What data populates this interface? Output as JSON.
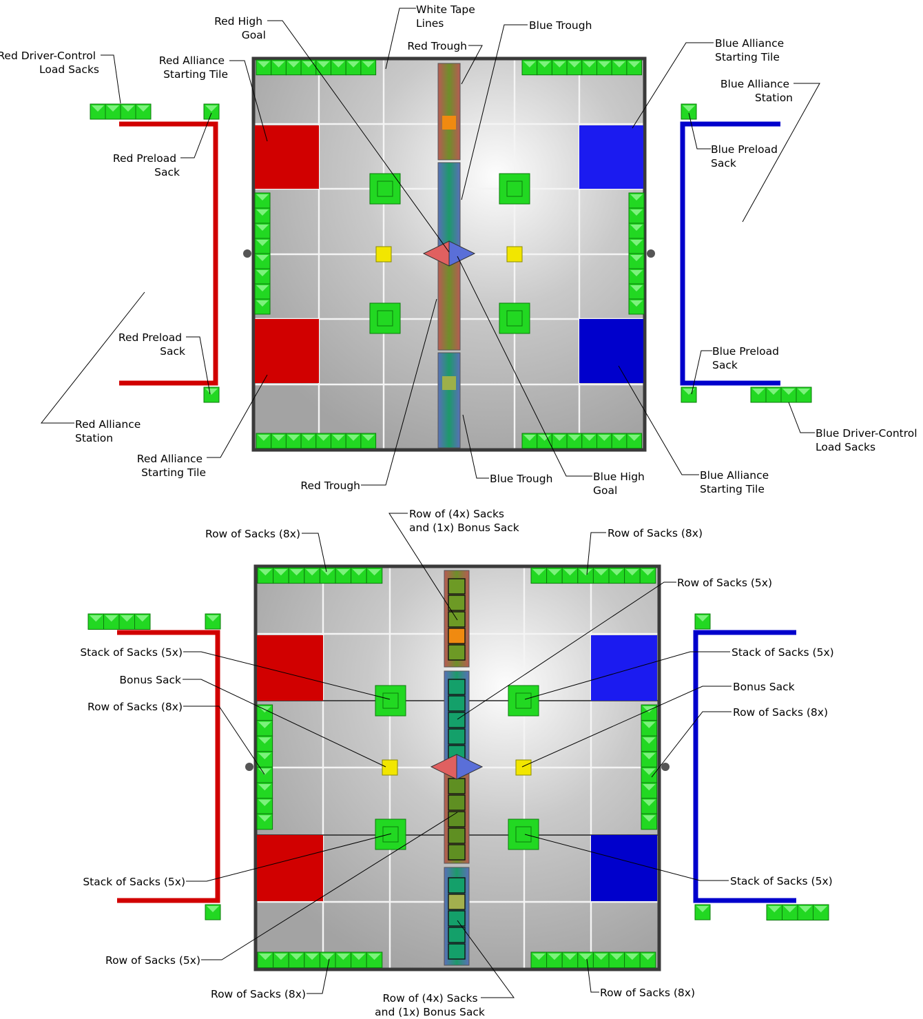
{
  "top_labels": {
    "red_high_goal": [
      "Red High",
      "Goal"
    ],
    "white_tape": [
      "White Tape",
      "Lines"
    ],
    "blue_trough_top": "Blue Trough",
    "red_trough_top": "Red Trough",
    "red_driver_load": [
      "Red Driver-Control",
      "Load Sacks"
    ],
    "red_starting_tile_top": [
      "Red Alliance",
      "Starting Tile"
    ],
    "blue_starting_tile_top": [
      "Blue Alliance",
      "Starting Tile"
    ],
    "blue_station": [
      "Blue Alliance",
      "Station"
    ],
    "red_preload_top": [
      "Red Preload",
      "Sack"
    ],
    "blue_preload_top": [
      "Blue Preload",
      "Sack"
    ],
    "red_preload_bottom": [
      "Red Preload",
      "Sack"
    ],
    "blue_preload_bottom": [
      "Blue Preload",
      "Sack"
    ],
    "red_station": [
      "Red Alliance",
      "Station"
    ],
    "blue_driver_load": [
      "Blue Driver-Control",
      "Load Sacks"
    ],
    "red_starting_tile_bottom": [
      "Red Alliance",
      "Starting Tile"
    ],
    "red_trough_bottom": "Red Trough",
    "blue_trough_bottom": "Blue Trough",
    "blue_high_goal": [
      "Blue High",
      "Goal"
    ],
    "blue_starting_tile_bottom": [
      "Blue Alliance",
      "Starting Tile"
    ]
  },
  "bottom_labels": {
    "row4_top": [
      "Row of (4x) Sacks",
      "and (1x) Bonus Sack"
    ],
    "row8_top_left": "Row of Sacks (8x)",
    "row8_top_right": "Row of Sacks (8x)",
    "row5_right": "Row of Sacks (5x)",
    "stack_left_top": "Stack of Sacks (5x)",
    "bonus_left": "Bonus Sack",
    "row8_left": "Row of Sacks (8x)",
    "stack_right_top": "Stack of Sacks (5x)",
    "bonus_right": "Bonus Sack",
    "row8_right": "Row of Sacks (8x)",
    "stack_left_bottom": "Stack of Sacks (5x)",
    "stack_right_bottom": "Stack of Sacks (5x)",
    "row5_left": "Row of Sacks (5x)",
    "row8_bottom_left": "Row of Sacks (8x)",
    "row8_bottom_right": "Row of Sacks (8x)",
    "row4_bottom": [
      "Row of (4x) Sacks",
      "and (1x) Bonus Sack"
    ]
  },
  "colors": {
    "red": "#d10000",
    "blue": "#0000cc",
    "sack_green": "#22d822",
    "bonus_yellow": "#f2e600",
    "tile_gray": "#a9a9a9"
  }
}
